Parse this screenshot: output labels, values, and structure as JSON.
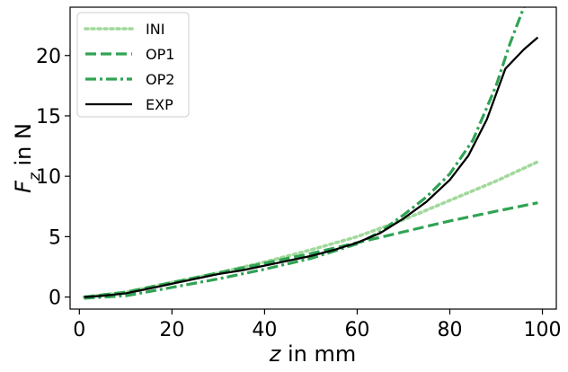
{
  "chart_data": {
    "type": "line",
    "xlabel": "z in mm",
    "ylabel": "F_z in N",
    "xlim": [
      -2,
      103
    ],
    "ylim": [
      -1,
      24
    ],
    "xticks": [
      "0",
      "20",
      "40",
      "60",
      "80",
      "100"
    ],
    "yticks": [
      "0",
      "5",
      "10",
      "15",
      "20"
    ],
    "grid": false,
    "legend_placement": "top-left",
    "series": [
      {
        "name": "INI",
        "color": "#a1d99b",
        "linestyle": "dotted",
        "x": [
          1,
          10,
          20,
          30,
          40,
          50,
          60,
          70,
          80,
          90,
          99
        ],
        "y": [
          0.0,
          0.4,
          1.2,
          2.0,
          2.9,
          3.9,
          5.0,
          6.4,
          8.0,
          9.6,
          11.2
        ]
      },
      {
        "name": "OP1",
        "color": "#31a354",
        "linestyle": "dashed",
        "x": [
          1,
          10,
          20,
          30,
          40,
          50,
          60,
          70,
          80,
          90,
          99
        ],
        "y": [
          0.0,
          0.4,
          1.2,
          2.0,
          2.8,
          3.6,
          4.5,
          5.4,
          6.3,
          7.1,
          7.8
        ]
      },
      {
        "name": "OP2",
        "color": "#31a354",
        "linestyle": "dashdot",
        "x": [
          1,
          10,
          20,
          30,
          40,
          50,
          60,
          65,
          70,
          75,
          80,
          85,
          90,
          93,
          96
        ],
        "y": [
          -0.1,
          0.1,
          0.8,
          1.5,
          2.3,
          3.2,
          4.4,
          5.4,
          6.8,
          8.3,
          10.2,
          13.0,
          17.5,
          21.0,
          24.0
        ]
      },
      {
        "name": "EXP",
        "color": "#000000",
        "linestyle": "solid",
        "x": [
          1,
          5,
          10,
          15,
          20,
          25,
          30,
          35,
          40,
          45,
          50,
          55,
          60,
          65,
          70,
          75,
          80,
          84,
          88,
          92,
          96,
          99
        ],
        "y": [
          0.0,
          0.1,
          0.3,
          0.7,
          1.1,
          1.5,
          1.9,
          2.2,
          2.6,
          3.0,
          3.4,
          3.9,
          4.5,
          5.3,
          6.5,
          7.9,
          9.7,
          11.7,
          14.7,
          18.9,
          20.5,
          21.5
        ]
      }
    ]
  }
}
